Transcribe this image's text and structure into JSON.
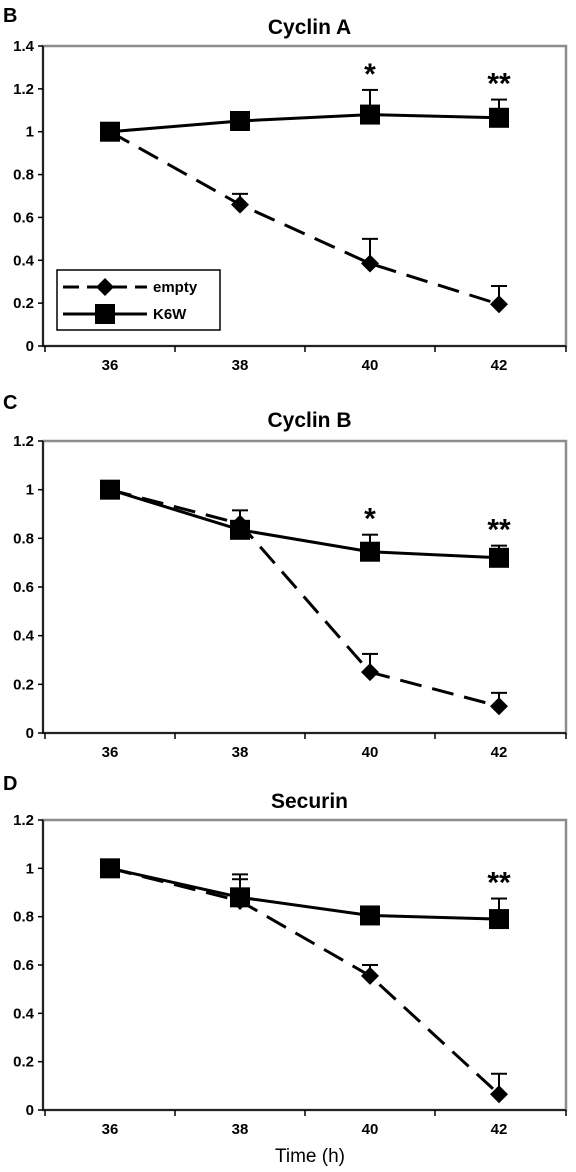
{
  "chart_data": [
    {
      "panel": "B",
      "title": "Cyclin A",
      "type": "line",
      "x": [
        36,
        38,
        40,
        42
      ],
      "ylim": [
        0,
        1.4
      ],
      "yticks": [
        "0",
        "0.2",
        "0.4",
        "0.6",
        "0.8",
        "1",
        "1.2",
        "1.4"
      ],
      "xticks": [
        "36",
        "38",
        "40",
        "42"
      ],
      "series": [
        {
          "name": "empty",
          "style": "dashed",
          "marker": "diamond",
          "values": [
            1.0,
            0.66,
            0.385,
            0.195
          ],
          "error": [
            0,
            0.05,
            0.115,
            0.085
          ]
        },
        {
          "name": "K6W",
          "style": "solid",
          "marker": "square",
          "values": [
            1.0,
            1.05,
            1.08,
            1.065
          ],
          "error": [
            0,
            0.035,
            0.115,
            0.085
          ]
        }
      ],
      "annotations": [
        {
          "x": 40,
          "text": "*"
        },
        {
          "x": 42,
          "text": "**"
        }
      ],
      "legend": {
        "position": "bottom-left",
        "entries": [
          "empty",
          "K6W"
        ]
      }
    },
    {
      "panel": "C",
      "title": "Cyclin B",
      "type": "line",
      "x": [
        36,
        38,
        40,
        42
      ],
      "ylim": [
        0,
        1.2
      ],
      "yticks": [
        "0",
        "0.2",
        "0.4",
        "0.6",
        "0.8",
        "1",
        "1.2"
      ],
      "xticks": [
        "36",
        "38",
        "40",
        "42"
      ],
      "series": [
        {
          "name": "empty",
          "style": "dashed",
          "marker": "diamond",
          "values": [
            1.0,
            0.86,
            0.25,
            0.11
          ],
          "error": [
            0,
            0.055,
            0.075,
            0.055
          ]
        },
        {
          "name": "K6W",
          "style": "solid",
          "marker": "square",
          "values": [
            1.0,
            0.835,
            0.745,
            0.72
          ],
          "error": [
            0,
            0.03,
            0.07,
            0.05
          ]
        }
      ],
      "annotations": [
        {
          "x": 40,
          "text": "*"
        },
        {
          "x": 42,
          "text": "**"
        }
      ]
    },
    {
      "panel": "D",
      "title": "Securin",
      "type": "line",
      "x": [
        36,
        38,
        40,
        42
      ],
      "ylim": [
        0,
        1.2
      ],
      "yticks": [
        "0",
        "0.2",
        "0.4",
        "0.6",
        "0.8",
        "1",
        "1.2"
      ],
      "xticks": [
        "36",
        "38",
        "40",
        "42"
      ],
      "xlabel": "Time (h)",
      "series": [
        {
          "name": "empty",
          "style": "dashed",
          "marker": "diamond",
          "values": [
            1.0,
            0.865,
            0.555,
            0.065
          ],
          "error": [
            0,
            0.09,
            0.045,
            0.085
          ]
        },
        {
          "name": "K6W",
          "style": "solid",
          "marker": "square",
          "values": [
            1.0,
            0.88,
            0.805,
            0.79
          ],
          "error": [
            0,
            0.095,
            0.03,
            0.085
          ]
        }
      ],
      "annotations": [
        {
          "x": 42,
          "text": "**"
        }
      ]
    }
  ],
  "colors": {
    "plot_border": "#8c8c8c",
    "line": "#000000",
    "background": "#ffffff"
  }
}
